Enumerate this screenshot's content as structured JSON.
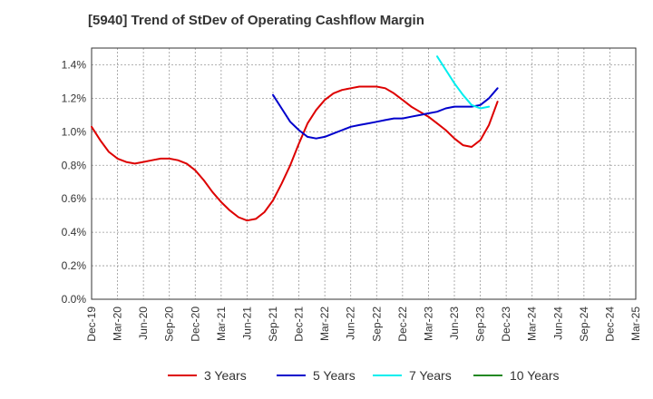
{
  "chart_data": {
    "type": "line",
    "title": "[5940]  Trend of StDev of Operating Cashflow Margin",
    "xlabel": "",
    "ylabel": "",
    "x_categories": [
      "Dec-19",
      "Mar-20",
      "Jun-20",
      "Sep-20",
      "Dec-20",
      "Mar-21",
      "Jun-21",
      "Sep-21",
      "Dec-21",
      "Mar-22",
      "Jun-22",
      "Sep-22",
      "Dec-22",
      "Mar-23",
      "Jun-23",
      "Sep-23",
      "Dec-23",
      "Mar-24",
      "Jun-24",
      "Sep-24",
      "Dec-24",
      "Mar-25"
    ],
    "y_ticks": [
      "0.0%",
      "0.2%",
      "0.4%",
      "0.6%",
      "0.8%",
      "1.0%",
      "1.2%",
      "1.4%"
    ],
    "ylim": [
      0,
      1.5
    ],
    "y_unit": "%",
    "grid": true,
    "legend_position": "bottom",
    "series": [
      {
        "name": "3 Years",
        "color": "#dd0000",
        "start_index": 0,
        "values": [
          1.03,
          0.95,
          0.88,
          0.84,
          0.82,
          0.81,
          0.82,
          0.83,
          0.84,
          0.84,
          0.83,
          0.81,
          0.77,
          0.71,
          0.64,
          0.58,
          0.53,
          0.49,
          0.47,
          0.48,
          0.52,
          0.59,
          0.69,
          0.8,
          0.93,
          1.05,
          1.13,
          1.19,
          1.23,
          1.25,
          1.26,
          1.27,
          1.27,
          1.27,
          1.26,
          1.23,
          1.19,
          1.15,
          1.12,
          1.09,
          1.05,
          1.01,
          0.96,
          0.92,
          0.91,
          0.95,
          1.04,
          1.18
        ]
      },
      {
        "name": "5 Years",
        "color": "#0000cc",
        "start_index": 21,
        "values": [
          1.22,
          1.14,
          1.06,
          1.01,
          0.97,
          0.96,
          0.97,
          0.99,
          1.01,
          1.03,
          1.04,
          1.05,
          1.06,
          1.07,
          1.08,
          1.08,
          1.09,
          1.1,
          1.11,
          1.12,
          1.14,
          1.15,
          1.15,
          1.15,
          1.16,
          1.2,
          1.26
        ]
      },
      {
        "name": "7 Years",
        "color": "#00eeee",
        "start_index": 40,
        "values": [
          1.45,
          1.37,
          1.29,
          1.22,
          1.16,
          1.14,
          1.15
        ]
      },
      {
        "name": "10 Years",
        "color": "#228822",
        "start_index": 0,
        "values": []
      }
    ]
  }
}
